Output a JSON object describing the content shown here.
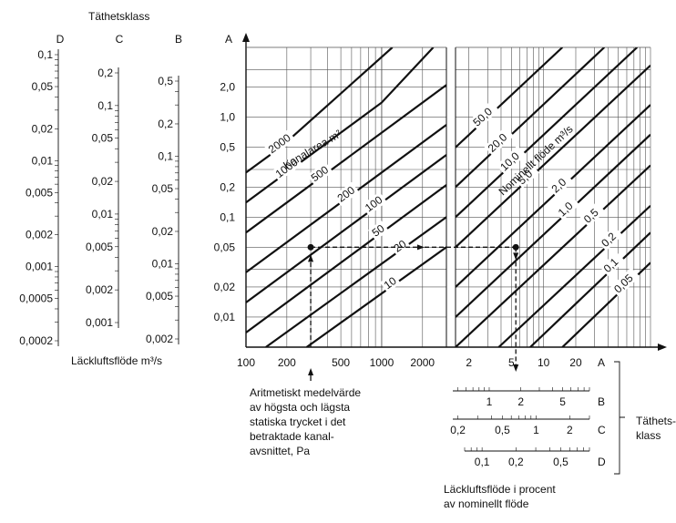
{
  "chart_data": {
    "type": "line",
    "title": "",
    "left_scale": {
      "title": "Täthetsklass",
      "footer": "Läckluftsflöde m³/s",
      "columns": [
        {
          "name": "D",
          "ticks": [
            "0,1",
            "0,05",
            "0,02",
            "0,01",
            "0,005",
            "0,002",
            "0,001",
            "0,0005",
            "0,0002"
          ]
        },
        {
          "name": "C",
          "ticks": [
            "0,2",
            "0,1",
            "0,05",
            "0,02",
            "0,01",
            "0,005",
            "0,002",
            "0,001"
          ]
        },
        {
          "name": "B",
          "ticks": [
            "0,5",
            "0,2",
            "0,1",
            "0,05",
            "0,02",
            "0,01",
            "0,005",
            "0,002"
          ]
        },
        {
          "name": "A",
          "ticks": [
            "2,0",
            "1,0",
            "0,5",
            "0,2",
            "0,1",
            "0,05",
            "0,02",
            "0,01"
          ]
        }
      ]
    },
    "y_axis": {
      "scale": "log",
      "ylim": [
        0.005,
        5
      ]
    },
    "left_panel": {
      "x_scale": "log",
      "xlim": [
        100,
        3000
      ],
      "x_ticks": [
        "100",
        "200",
        "500",
        "1000",
        "2000"
      ],
      "series_label": "Kanalarea m²",
      "series": [
        {
          "name": "10",
          "points": [
            [
              280,
              0.005
            ],
            [
              3000,
              0.05
            ]
          ]
        },
        {
          "name": "20",
          "points": [
            [
              140,
              0.005
            ],
            [
              3000,
              0.1
            ]
          ]
        },
        {
          "name": "50",
          "points": [
            [
              100,
              0.007
            ],
            [
              3000,
              0.21
            ]
          ]
        },
        {
          "name": "100",
          "points": [
            [
              100,
              0.014
            ],
            [
              3000,
              0.42
            ]
          ]
        },
        {
          "name": "200",
          "points": [
            [
              100,
              0.028
            ],
            [
              3000,
              0.84
            ]
          ]
        },
        {
          "name": "500",
          "points": [
            [
              100,
              0.07
            ],
            [
              3000,
              2.1
            ]
          ]
        },
        {
          "name": "1000",
          "points": [
            [
              100,
              0.14
            ],
            [
              1000,
              1.4
            ],
            [
              2400,
              5
            ]
          ]
        },
        {
          "name": "2000",
          "points": [
            [
              100,
              0.28
            ],
            [
              180,
              0.5
            ],
            [
              1200,
              5
            ]
          ]
        }
      ]
    },
    "right_panel": {
      "x_scale": "log",
      "xlim": [
        1.5,
        100
      ],
      "x_ticks": [
        "2",
        "5",
        "10",
        "20"
      ],
      "series_label": "Nominellt flöde m³/s",
      "series": [
        {
          "name": "0,05",
          "points": [
            [
              15,
              0.005
            ],
            [
              100,
              0.035
            ]
          ]
        },
        {
          "name": "0,1",
          "points": [
            [
              7.5,
              0.005
            ],
            [
              100,
              0.07
            ]
          ]
        },
        {
          "name": "0,2",
          "points": [
            [
              3.8,
              0.005
            ],
            [
              100,
              0.13
            ]
          ]
        },
        {
          "name": "0,5",
          "points": [
            [
              1.5,
              0.005
            ],
            [
              100,
              0.33
            ]
          ]
        },
        {
          "name": "1,0",
          "points": [
            [
              1.5,
              0.01
            ],
            [
              100,
              0.67
            ]
          ]
        },
        {
          "name": "2,0",
          "points": [
            [
              1.5,
              0.02
            ],
            [
              100,
              1.33
            ]
          ]
        },
        {
          "name": "5,0",
          "points": [
            [
              1.5,
              0.05
            ],
            [
              100,
              3.3
            ]
          ]
        },
        {
          "name": "10,0",
          "points": [
            [
              1.5,
              0.1
            ],
            [
              75,
              5
            ]
          ]
        },
        {
          "name": "20,0",
          "points": [
            [
              1.5,
              0.2
            ],
            [
              37,
              5
            ]
          ]
        },
        {
          "name": "50,0",
          "points": [
            [
              1.5,
              0.5
            ],
            [
              15,
              5
            ]
          ]
        }
      ]
    },
    "example": {
      "pressure": 300,
      "leak": 0.05,
      "percent_a": 5.5
    },
    "x_annotation": "Aritmetiskt medelvärde av högsta och lägsta statiska trycket i det betraktade kanal-avsnittet, Pa",
    "bottom_scales": {
      "rows": [
        {
          "name": "A",
          "ticks": [
            "2",
            "5",
            "10",
            "20"
          ]
        },
        {
          "name": "B",
          "ticks": [
            "1",
            "2",
            "5"
          ]
        },
        {
          "name": "C",
          "ticks": [
            "0,2",
            "0,5",
            "1",
            "2"
          ]
        },
        {
          "name": "D",
          "ticks": [
            "0,1",
            "0,2",
            "0,5"
          ]
        }
      ],
      "group_label": "Täthets-klass",
      "footer": "Läckluftsflöde i procent av nominellt flöde"
    }
  }
}
